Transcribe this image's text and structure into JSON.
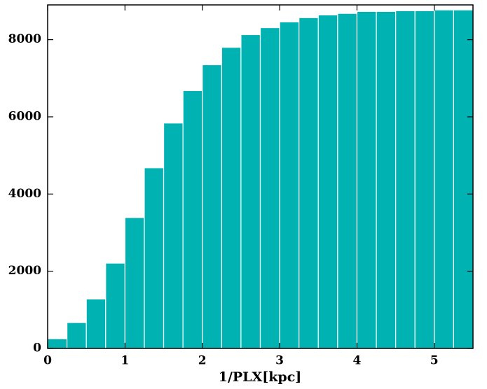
{
  "chart_data": {
    "type": "histogram",
    "x_label": "1/PLX[kpc]",
    "color": "#00b2b2",
    "bins": [
      0,
      0.25,
      0.5,
      0.75,
      1,
      1.25,
      1.5,
      1.75,
      2,
      2.25,
      2.5,
      2.75,
      3,
      3.25,
      3.5,
      3.75,
      4,
      4.25,
      4.5,
      4.75,
      5,
      5.25,
      5.5
    ],
    "values": [
      250,
      670,
      1280,
      2210,
      3390,
      4680,
      5840,
      6680,
      7350,
      7800,
      8130,
      8310,
      8460,
      8570,
      8640,
      8680,
      8730,
      8730,
      8750,
      8750,
      8770,
      8770
    ],
    "xlim": [
      0,
      5.5
    ],
    "ylim": [
      0,
      8900
    ],
    "xticks": [
      0,
      1,
      2,
      3,
      4,
      5
    ],
    "yticks": [
      0,
      2000,
      4000,
      6000,
      8000
    ]
  }
}
